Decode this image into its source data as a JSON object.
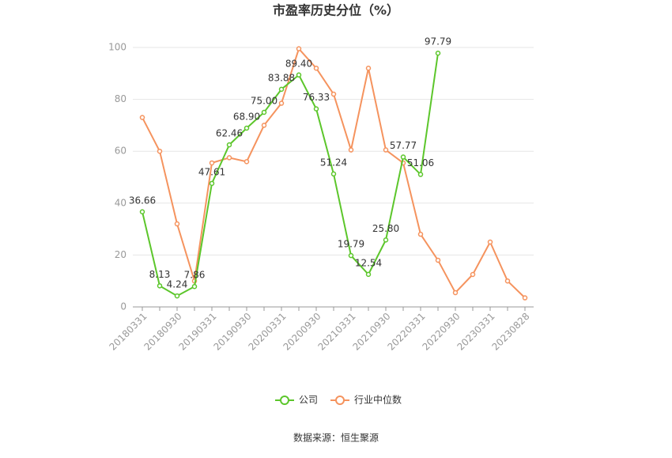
{
  "chart_data": {
    "type": "line",
    "title": "市盈率历史分位（%）",
    "categories": [
      "20180331",
      null,
      "20180930",
      null,
      "20190331",
      null,
      "20190930",
      null,
      "20200331",
      null,
      "20200930",
      null,
      "20210331",
      null,
      "20210930",
      null,
      "20220331",
      null,
      "20220930",
      null,
      "20230331",
      null,
      "20230828"
    ],
    "series": [
      {
        "name": "公司",
        "color": "#5cc62b",
        "values": [
          36.66,
          8.13,
          4.24,
          7.86,
          47.61,
          62.46,
          68.9,
          75.0,
          83.88,
          89.4,
          76.33,
          51.24,
          19.79,
          12.54,
          25.8,
          57.77,
          51.06,
          97.79,
          null,
          null,
          null,
          null,
          null
        ],
        "value_labels": [
          "36.66",
          "8.13",
          "4.24",
          "7.86",
          "47.61",
          "62.46",
          "68.90",
          "75.00",
          "83.88",
          "89.40",
          "76.33",
          "51.24",
          "19.79",
          "12.54",
          "25.80",
          "57.77",
          "51.06",
          "97.79",
          null,
          null,
          null,
          null,
          null
        ]
      },
      {
        "name": "行业中位数",
        "color": "#f5935e",
        "values": [
          73,
          60,
          32,
          10,
          55.5,
          57.5,
          56,
          70,
          78.5,
          99.5,
          92,
          82,
          60.5,
          92,
          60.5,
          55.5,
          28,
          18,
          5.5,
          12.5,
          25,
          10,
          3.5
        ]
      }
    ],
    "ylim": [
      0,
      100
    ],
    "yticks": [
      0,
      20,
      40,
      60,
      80,
      100
    ],
    "grid": true,
    "legend": "bottom",
    "source": "数据来源：恒生聚源"
  }
}
